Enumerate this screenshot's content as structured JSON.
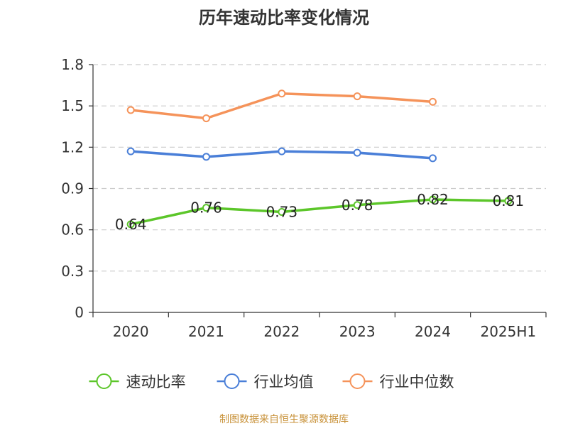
{
  "page": {
    "title": "历年速动比率变化情况",
    "source": "制图数据来自恒生聚源数据库"
  },
  "colors": {
    "axis": "#333333",
    "grid": "#cccccc",
    "source": "#c8923a"
  },
  "chart_data": {
    "type": "line",
    "title": "历年速动比率变化情况",
    "xlabel": "",
    "ylabel": "",
    "categories": [
      "2020",
      "2021",
      "2022",
      "2023",
      "2024",
      "2025H1"
    ],
    "ylim": [
      0,
      1.8
    ],
    "yticks": [
      "0",
      "0.3",
      "0.6",
      "0.9",
      "1.2",
      "1.5",
      "1.8"
    ],
    "grid": true,
    "legend_position": "bottom",
    "series": [
      {
        "name": "速动比率",
        "color": "#5cc62a",
        "values": [
          0.64,
          0.76,
          0.73,
          0.78,
          0.82,
          0.81
        ],
        "labels": [
          "0.64",
          "0.76",
          "0.73",
          "0.78",
          "0.82",
          "0.81"
        ]
      },
      {
        "name": "行业均值",
        "color": "#4a7fd8",
        "values": [
          1.17,
          1.13,
          1.17,
          1.16,
          1.12,
          null
        ],
        "labels": []
      },
      {
        "name": "行业中位数",
        "color": "#f5935a",
        "values": [
          1.47,
          1.41,
          1.59,
          1.57,
          1.53,
          null
        ],
        "labels": []
      }
    ]
  }
}
